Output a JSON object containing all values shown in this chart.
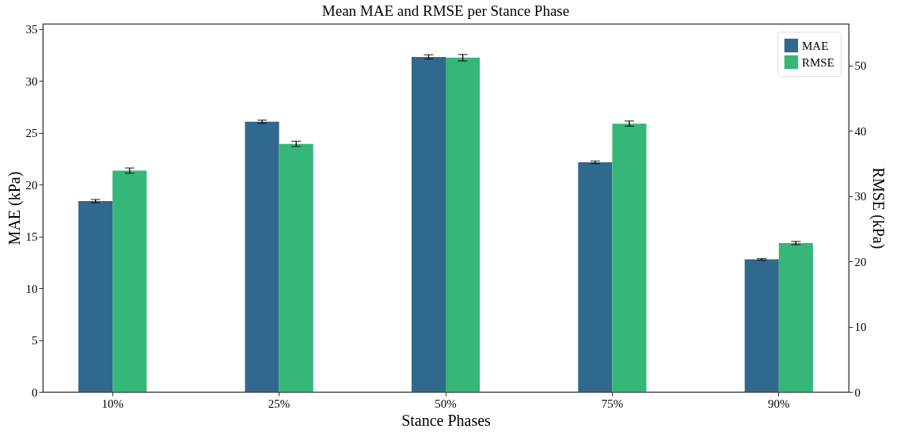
{
  "chart_data": {
    "type": "bar",
    "title": "Mean MAE and RMSE per Stance Phase",
    "xlabel": "Stance Phases",
    "ylabel": "MAE (kPa)",
    "y2label": "RMSE (kPa)",
    "categories": [
      "10%",
      "25%",
      "50%",
      "75%",
      "90%"
    ],
    "series": [
      {
        "name": "MAE",
        "color": "#31688e",
        "values": [
          18.4,
          26.06,
          32.3,
          22.14,
          12.78
        ],
        "errors": [
          0.15,
          0.15,
          0.2,
          0.12,
          0.08
        ]
      },
      {
        "name": "RMSE",
        "color": "#35b779",
        "axis": "y2",
        "values": [
          33.9,
          38.0,
          51.2,
          41.1,
          22.8
        ],
        "errors": [
          0.4,
          0.4,
          0.5,
          0.4,
          0.25
        ]
      }
    ],
    "ylim": [
      0,
      35.5
    ],
    "yticks": [
      0,
      5,
      10,
      15,
      20,
      25,
      30,
      35
    ],
    "y2lim": [
      0,
      56.4
    ],
    "y2ticks": [
      0,
      10,
      20,
      30,
      40,
      50
    ],
    "grid": false,
    "legend": "top right"
  }
}
